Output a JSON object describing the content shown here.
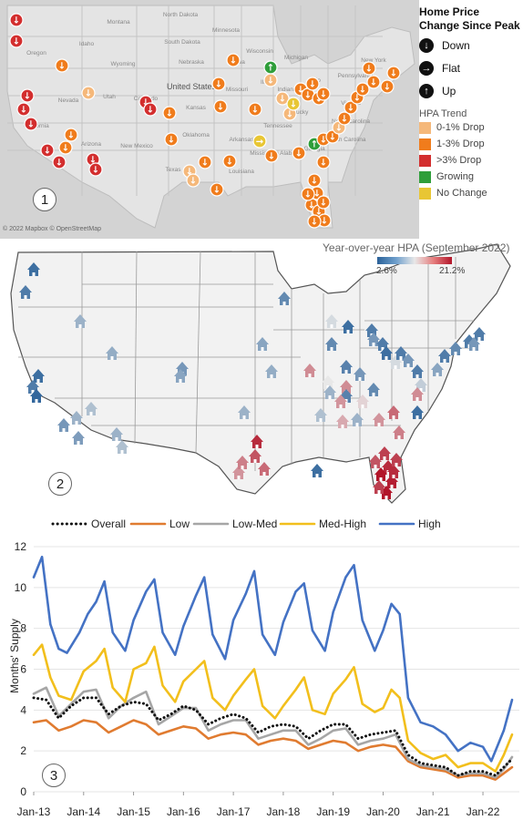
{
  "panel1": {
    "label": "1",
    "map_credit": "© 2022 Mapbox © OpenStreetMap",
    "state_labels": [
      "North Dakota",
      "Montana",
      "Minnesota",
      "Oregon",
      "Idaho",
      "South Dakota",
      "Wyoming",
      "Nebraska",
      "Iowa",
      "Nevada",
      "United States",
      "Utah",
      "Colorado",
      "Kansas",
      "California",
      "Arizona",
      "New Mexico",
      "Oklahoma",
      "Texas",
      "Missouri",
      "Illinois",
      "Indiana",
      "Ohio",
      "Kentucky",
      "Tennessee",
      "Arkansas",
      "Mississippi",
      "Alabama",
      "Georgia",
      "Louisiana",
      "Virginia",
      "North Carolina",
      "South Carolina",
      "Pennsylvania",
      "New York",
      "Michigan",
      "Wisconsin"
    ],
    "legend": {
      "title": "Home Price Change Since Peak",
      "directions": [
        {
          "label": "Down",
          "icon": "arrow-down-icon"
        },
        {
          "label": "Flat",
          "icon": "arrow-right-icon"
        },
        {
          "label": "Up",
          "icon": "arrow-up-icon"
        }
      ],
      "trend_title": "HPA Trend",
      "trends": [
        {
          "label": "0-1% Drop",
          "color": "#f5b87a"
        },
        {
          "label": "1-3% Drop",
          "color": "#f07c1c"
        },
        {
          "label": ">3% Drop",
          "color": "#d32e2e"
        },
        {
          "label": "Growing",
          "color": "#2f9e3a"
        },
        {
          "label": "No Change",
          "color": "#e8c634"
        }
      ]
    }
  },
  "panel2": {
    "label": "2",
    "title": "Year-over-year HPA (September 2022)",
    "scale_min": "2.6%",
    "scale_max": "21.2%",
    "colors": {
      "low": "#2a6199",
      "mid": "#e8e8e8",
      "high": "#b2162a"
    }
  },
  "panel3": {
    "label": "3"
  },
  "chart_data": {
    "type": "line",
    "ylabel": "Months' Supply",
    "ylim": [
      0,
      12
    ],
    "yticks": [
      0,
      2,
      4,
      6,
      8,
      10,
      12
    ],
    "x_tick_labels": [
      "Jan-13",
      "Jan-14",
      "Jan-15",
      "Jan-16",
      "Jan-17",
      "Jan-18",
      "Jan-19",
      "Jan-20",
      "Jan-21",
      "Jan-22"
    ],
    "x_range": [
      "2013-01",
      "2022-08"
    ],
    "grid": true,
    "legend_position": "top",
    "series": [
      {
        "name": "Overall",
        "color": "#111111",
        "style": "dotted",
        "points": [
          [
            "2013-01",
            4.6
          ],
          [
            "2013-04",
            4.5
          ],
          [
            "2013-07",
            3.6
          ],
          [
            "2013-10",
            4.2
          ],
          [
            "2014-01",
            4.6
          ],
          [
            "2014-04",
            4.6
          ],
          [
            "2014-07",
            3.8
          ],
          [
            "2014-10",
            4.2
          ],
          [
            "2015-01",
            4.4
          ],
          [
            "2015-04",
            4.3
          ],
          [
            "2015-07",
            3.5
          ],
          [
            "2015-10",
            3.8
          ],
          [
            "2016-01",
            4.2
          ],
          [
            "2016-04",
            4.0
          ],
          [
            "2016-07",
            3.3
          ],
          [
            "2016-10",
            3.6
          ],
          [
            "2017-01",
            3.8
          ],
          [
            "2017-04",
            3.6
          ],
          [
            "2017-07",
            2.9
          ],
          [
            "2017-10",
            3.2
          ],
          [
            "2018-01",
            3.3
          ],
          [
            "2018-04",
            3.2
          ],
          [
            "2018-07",
            2.6
          ],
          [
            "2018-10",
            3.0
          ],
          [
            "2019-01",
            3.3
          ],
          [
            "2019-04",
            3.3
          ],
          [
            "2019-07",
            2.6
          ],
          [
            "2019-10",
            2.8
          ],
          [
            "2020-01",
            2.9
          ],
          [
            "2020-04",
            3.0
          ],
          [
            "2020-07",
            1.8
          ],
          [
            "2020-10",
            1.4
          ],
          [
            "2021-01",
            1.3
          ],
          [
            "2021-04",
            1.2
          ],
          [
            "2021-07",
            0.8
          ],
          [
            "2021-10",
            1.0
          ],
          [
            "2022-01",
            1.0
          ],
          [
            "2022-04",
            0.8
          ],
          [
            "2022-06",
            1.2
          ],
          [
            "2022-08",
            1.6
          ]
        ]
      },
      {
        "name": "Low",
        "color": "#e07b30",
        "style": "solid",
        "points": [
          [
            "2013-01",
            3.4
          ],
          [
            "2013-04",
            3.5
          ],
          [
            "2013-07",
            3.0
          ],
          [
            "2013-10",
            3.2
          ],
          [
            "2014-01",
            3.5
          ],
          [
            "2014-04",
            3.4
          ],
          [
            "2014-07",
            2.9
          ],
          [
            "2014-10",
            3.2
          ],
          [
            "2015-01",
            3.5
          ],
          [
            "2015-04",
            3.3
          ],
          [
            "2015-07",
            2.8
          ],
          [
            "2015-10",
            3.0
          ],
          [
            "2016-01",
            3.2
          ],
          [
            "2016-04",
            3.1
          ],
          [
            "2016-07",
            2.6
          ],
          [
            "2016-10",
            2.8
          ],
          [
            "2017-01",
            2.9
          ],
          [
            "2017-04",
            2.8
          ],
          [
            "2017-07",
            2.3
          ],
          [
            "2017-10",
            2.5
          ],
          [
            "2018-01",
            2.6
          ],
          [
            "2018-04",
            2.5
          ],
          [
            "2018-07",
            2.1
          ],
          [
            "2018-10",
            2.3
          ],
          [
            "2019-01",
            2.5
          ],
          [
            "2019-04",
            2.4
          ],
          [
            "2019-07",
            2.0
          ],
          [
            "2019-10",
            2.2
          ],
          [
            "2020-01",
            2.3
          ],
          [
            "2020-04",
            2.2
          ],
          [
            "2020-07",
            1.5
          ],
          [
            "2020-10",
            1.2
          ],
          [
            "2021-01",
            1.1
          ],
          [
            "2021-04",
            1.0
          ],
          [
            "2021-07",
            0.7
          ],
          [
            "2021-10",
            0.8
          ],
          [
            "2022-01",
            0.8
          ],
          [
            "2022-04",
            0.6
          ],
          [
            "2022-06",
            0.9
          ],
          [
            "2022-08",
            1.2
          ]
        ]
      },
      {
        "name": "Low-Med",
        "color": "#a6a6a6",
        "style": "solid",
        "points": [
          [
            "2013-01",
            4.8
          ],
          [
            "2013-04",
            5.1
          ],
          [
            "2013-07",
            3.7
          ],
          [
            "2013-10",
            4.3
          ],
          [
            "2014-01",
            4.9
          ],
          [
            "2014-04",
            5.0
          ],
          [
            "2014-07",
            3.6
          ],
          [
            "2014-10",
            4.2
          ],
          [
            "2015-01",
            4.6
          ],
          [
            "2015-04",
            4.9
          ],
          [
            "2015-07",
            3.3
          ],
          [
            "2015-10",
            3.7
          ],
          [
            "2016-01",
            4.1
          ],
          [
            "2016-04",
            4.1
          ],
          [
            "2016-07",
            3.0
          ],
          [
            "2016-10",
            3.3
          ],
          [
            "2017-01",
            3.5
          ],
          [
            "2017-04",
            3.5
          ],
          [
            "2017-07",
            2.6
          ],
          [
            "2017-10",
            2.8
          ],
          [
            "2018-01",
            3.0
          ],
          [
            "2018-04",
            3.0
          ],
          [
            "2018-07",
            2.3
          ],
          [
            "2018-10",
            2.6
          ],
          [
            "2019-01",
            3.0
          ],
          [
            "2019-04",
            3.1
          ],
          [
            "2019-07",
            2.3
          ],
          [
            "2019-10",
            2.5
          ],
          [
            "2020-01",
            2.6
          ],
          [
            "2020-04",
            2.8
          ],
          [
            "2020-07",
            1.6
          ],
          [
            "2020-10",
            1.3
          ],
          [
            "2021-01",
            1.2
          ],
          [
            "2021-04",
            1.1
          ],
          [
            "2021-07",
            0.8
          ],
          [
            "2021-10",
            0.9
          ],
          [
            "2022-01",
            0.9
          ],
          [
            "2022-04",
            0.7
          ],
          [
            "2022-06",
            1.1
          ],
          [
            "2022-08",
            1.7
          ]
        ]
      },
      {
        "name": "Med-High",
        "color": "#f2bf1c",
        "style": "solid",
        "points": [
          [
            "2013-01",
            6.7
          ],
          [
            "2013-03",
            7.2
          ],
          [
            "2013-05",
            5.6
          ],
          [
            "2013-07",
            4.7
          ],
          [
            "2013-10",
            4.5
          ],
          [
            "2014-01",
            5.9
          ],
          [
            "2014-04",
            6.4
          ],
          [
            "2014-06",
            7.0
          ],
          [
            "2014-08",
            5.1
          ],
          [
            "2014-11",
            4.4
          ],
          [
            "2015-01",
            6.0
          ],
          [
            "2015-04",
            6.3
          ],
          [
            "2015-06",
            7.1
          ],
          [
            "2015-08",
            5.2
          ],
          [
            "2015-11",
            4.4
          ],
          [
            "2016-01",
            5.4
          ],
          [
            "2016-04",
            6.0
          ],
          [
            "2016-06",
            6.4
          ],
          [
            "2016-08",
            4.6
          ],
          [
            "2016-11",
            4.0
          ],
          [
            "2017-01",
            4.7
          ],
          [
            "2017-04",
            5.5
          ],
          [
            "2017-06",
            6.0
          ],
          [
            "2017-08",
            4.2
          ],
          [
            "2017-11",
            3.6
          ],
          [
            "2018-01",
            4.2
          ],
          [
            "2018-04",
            5.0
          ],
          [
            "2018-06",
            5.6
          ],
          [
            "2018-08",
            4.0
          ],
          [
            "2018-11",
            3.8
          ],
          [
            "2019-01",
            4.8
          ],
          [
            "2019-04",
            5.5
          ],
          [
            "2019-06",
            6.1
          ],
          [
            "2019-08",
            4.3
          ],
          [
            "2019-11",
            3.9
          ],
          [
            "2020-01",
            4.1
          ],
          [
            "2020-03",
            5.0
          ],
          [
            "2020-05",
            4.6
          ],
          [
            "2020-07",
            2.5
          ],
          [
            "2020-10",
            1.9
          ],
          [
            "2021-01",
            1.6
          ],
          [
            "2021-04",
            1.8
          ],
          [
            "2021-07",
            1.2
          ],
          [
            "2021-10",
            1.4
          ],
          [
            "2022-01",
            1.4
          ],
          [
            "2022-04",
            1.0
          ],
          [
            "2022-06",
            1.8
          ],
          [
            "2022-08",
            2.8
          ]
        ]
      },
      {
        "name": "High",
        "color": "#4472c4",
        "style": "solid",
        "points": [
          [
            "2013-01",
            10.5
          ],
          [
            "2013-03",
            11.5
          ],
          [
            "2013-05",
            8.2
          ],
          [
            "2013-07",
            7.0
          ],
          [
            "2013-09",
            6.8
          ],
          [
            "2013-12",
            7.8
          ],
          [
            "2014-02",
            8.7
          ],
          [
            "2014-04",
            9.3
          ],
          [
            "2014-06",
            10.3
          ],
          [
            "2014-08",
            7.8
          ],
          [
            "2014-11",
            6.9
          ],
          [
            "2015-01",
            8.4
          ],
          [
            "2015-04",
            9.8
          ],
          [
            "2015-06",
            10.4
          ],
          [
            "2015-08",
            7.8
          ],
          [
            "2015-11",
            6.7
          ],
          [
            "2016-01",
            8.1
          ],
          [
            "2016-04",
            9.6
          ],
          [
            "2016-06",
            10.5
          ],
          [
            "2016-08",
            7.7
          ],
          [
            "2016-11",
            6.5
          ],
          [
            "2017-01",
            8.4
          ],
          [
            "2017-04",
            9.7
          ],
          [
            "2017-06",
            10.8
          ],
          [
            "2017-08",
            7.7
          ],
          [
            "2017-11",
            6.7
          ],
          [
            "2018-01",
            8.3
          ],
          [
            "2018-04",
            9.8
          ],
          [
            "2018-06",
            10.2
          ],
          [
            "2018-08",
            7.9
          ],
          [
            "2018-11",
            6.9
          ],
          [
            "2019-01",
            8.8
          ],
          [
            "2019-04",
            10.5
          ],
          [
            "2019-06",
            11.1
          ],
          [
            "2019-08",
            8.4
          ],
          [
            "2019-11",
            6.9
          ],
          [
            "2020-01",
            7.9
          ],
          [
            "2020-03",
            9.2
          ],
          [
            "2020-05",
            8.7
          ],
          [
            "2020-07",
            4.6
          ],
          [
            "2020-10",
            3.4
          ],
          [
            "2021-01",
            3.2
          ],
          [
            "2021-04",
            2.8
          ],
          [
            "2021-07",
            2.0
          ],
          [
            "2021-10",
            2.4
          ],
          [
            "2022-01",
            2.2
          ],
          [
            "2022-03",
            1.5
          ],
          [
            "2022-06",
            3.0
          ],
          [
            "2022-08",
            4.5
          ]
        ]
      }
    ]
  }
}
